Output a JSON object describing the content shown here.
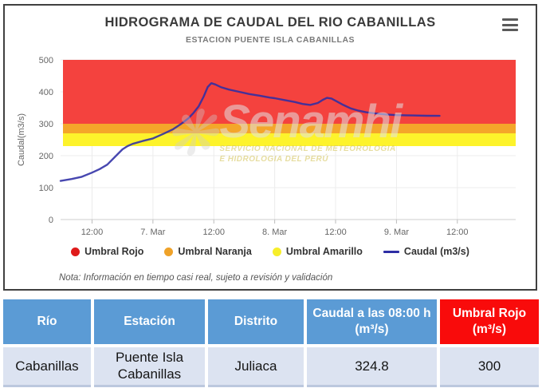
{
  "watermark": {
    "logo_text": "Senamhi",
    "line1": "SERVICIO NACIONAL DE METEOROLOGIA",
    "line2": "E HIDROLOGIA DEL PERÚ"
  },
  "chart_data": {
    "type": "line",
    "title": "HIDROGRAMA DE CAUDAL DEL RIO CABANILLAS",
    "subtitle": "ESTACION PUENTE ISLA CABANILLAS",
    "note": "Nota: Información en tiempo casi real, sujeto a revisión y validación",
    "ylabel": "Caudal(m3/s)",
    "ylim": [
      0,
      500
    ],
    "yticks": [
      0,
      100,
      200,
      300,
      400,
      500
    ],
    "x_unit": "hours since 6 Mar 00:00",
    "x_range_hours": [
      5.8,
      95.5
    ],
    "xticks": [
      {
        "t": 12,
        "label": "12:00"
      },
      {
        "t": 24,
        "label": "7. Mar"
      },
      {
        "t": 36,
        "label": "12:00"
      },
      {
        "t": 48,
        "label": "8. Mar"
      },
      {
        "t": 60,
        "label": "12:00"
      },
      {
        "t": 72,
        "label": "9. Mar"
      },
      {
        "t": 84,
        "label": "12:00"
      }
    ],
    "grid": true,
    "legend_position": "bottom",
    "bands": [
      {
        "name": "Umbral Rojo",
        "from": 300,
        "to": 500,
        "color": "#F4423E",
        "legend_color": "#DF1B1B"
      },
      {
        "name": "Umbral Naranja",
        "from": 270,
        "to": 300,
        "color": "#F4A62A",
        "legend_color": "#EFA229"
      },
      {
        "name": "Umbral Amarillo",
        "from": 230,
        "to": 270,
        "color": "#FDF32B",
        "legend_color": "#F7EE2A"
      }
    ],
    "series": [
      {
        "name": "Caudal (m3/s)",
        "color": "#2E2EA5",
        "points": [
          [
            5.8,
            121
          ],
          [
            8,
            127
          ],
          [
            10,
            134
          ],
          [
            12,
            147
          ],
          [
            13.5,
            158
          ],
          [
            15,
            172
          ],
          [
            16.5,
            196
          ],
          [
            18,
            220
          ],
          [
            19,
            230
          ],
          [
            20,
            237
          ],
          [
            22,
            246
          ],
          [
            24,
            254
          ],
          [
            26,
            268
          ],
          [
            28,
            283
          ],
          [
            29.5,
            299
          ],
          [
            31,
            317
          ],
          [
            32,
            334
          ],
          [
            33,
            354
          ],
          [
            34,
            385
          ],
          [
            34.8,
            415
          ],
          [
            35.5,
            427
          ],
          [
            36.3,
            423
          ],
          [
            37.5,
            414
          ],
          [
            39,
            407
          ],
          [
            41,
            400
          ],
          [
            43,
            393
          ],
          [
            45,
            388
          ],
          [
            47,
            382
          ],
          [
            48,
            380
          ],
          [
            50,
            374
          ],
          [
            52,
            368
          ],
          [
            53.5,
            362
          ],
          [
            55,
            359
          ],
          [
            56.5,
            365
          ],
          [
            57.5,
            375
          ],
          [
            58.3,
            381
          ],
          [
            59.2,
            379
          ],
          [
            60,
            372
          ],
          [
            61.5,
            359
          ],
          [
            63,
            348
          ],
          [
            64.5,
            341
          ],
          [
            66,
            336
          ],
          [
            68,
            332
          ],
          [
            70,
            329
          ],
          [
            72,
            327
          ],
          [
            75,
            326
          ],
          [
            78,
            325
          ],
          [
            80.5,
            324.8
          ]
        ]
      }
    ]
  },
  "table": {
    "headers": [
      "Río",
      "Estación",
      "Distrito",
      "Caudal a las 08:00 h (m³/s)",
      "Umbral Rojo (m³/s)"
    ],
    "rows": [
      [
        "Cabanillas",
        "Puente Isla Cabanillas",
        "Juliaca",
        "324.8",
        "300"
      ]
    ],
    "colors": {
      "header_bg": "#5B9BD5",
      "header_alert_bg": "#F90B0B",
      "row_bg": "#DCE3F1"
    }
  }
}
